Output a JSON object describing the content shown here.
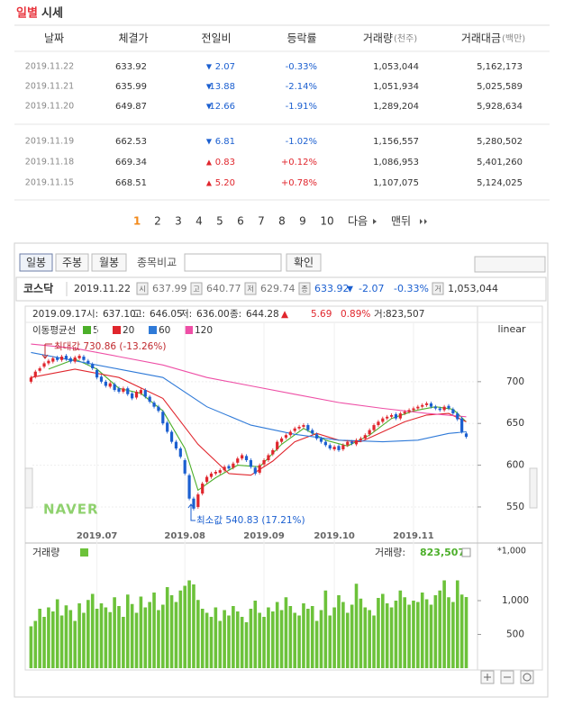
{
  "header": {
    "title_red": "일별",
    "title": "시세"
  },
  "table": {
    "columns": [
      {
        "label": "날짜"
      },
      {
        "label": "체결가"
      },
      {
        "label": "전일비"
      },
      {
        "label": "등락률"
      },
      {
        "label": "거래량",
        "unit": "(천주)"
      },
      {
        "label": "거래대금",
        "unit": "(백만)"
      }
    ],
    "rows": [
      [
        "2019.11.22",
        "633.92",
        "▼",
        "2.07",
        "-0.33%",
        "1,053,044",
        "5,162,173"
      ],
      [
        "2019.11.21",
        "635.99",
        "▼",
        "13.88",
        "-2.14%",
        "1,051,934",
        "5,025,589"
      ],
      [
        "2019.11.20",
        "649.87",
        "▼",
        "12.66",
        "-1.91%",
        "1,289,204",
        "5,928,634"
      ],
      [
        "2019.11.19",
        "662.53",
        "▼",
        "6.81",
        "-1.02%",
        "1,156,557",
        "5,280,502"
      ],
      [
        "2019.11.18",
        "669.34",
        "▲",
        "0.83",
        "+0.12%",
        "1,086,953",
        "5,401,260"
      ],
      [
        "2019.11.15",
        "668.51",
        "▲",
        "5.20",
        "+0.78%",
        "1,107,075",
        "5,124,025"
      ]
    ]
  },
  "pagination": {
    "pages": [
      "1",
      "2",
      "3",
      "4",
      "5",
      "6",
      "7",
      "8",
      "9",
      "10"
    ],
    "next": "다음",
    "last": "맨뒤"
  },
  "toolbar": {
    "buttons": [
      "일봉",
      "주봉",
      "월봉"
    ],
    "compare_label": "종목비교",
    "confirm": "확인"
  },
  "info": {
    "market": "코스닥",
    "date": "2019.11.22",
    "fields": [
      {
        "icon": "시",
        "value": "637.99"
      },
      {
        "icon": "고",
        "value": "640.77"
      },
      {
        "icon": "저",
        "value": "629.74"
      },
      {
        "icon": "종",
        "value": "633.92"
      }
    ],
    "change_arrow": "▼",
    "change": "-2.07",
    "change_rate": "-0.33%",
    "volume_icon": "거",
    "volume": "1,053,044"
  },
  "chart_data": {
    "type": "candlestick",
    "header": [
      "2019.09.17",
      "시:",
      "637.10",
      "고:",
      "646.05",
      "저:",
      "636.00",
      "종:",
      "644.28",
      "▲",
      "5.69",
      "0.89%",
      "거:",
      "823,507"
    ],
    "legend_title": "이동평균선",
    "scale": "linear",
    "max_label": "최대값 730.86 (-13.26%)",
    "min_label": "최소값 540.83 (17.21%)",
    "watermark": "NAVER",
    "categories": [
      null,
      null,
      null,
      null,
      null,
      null,
      null,
      null,
      null,
      null,
      null,
      null,
      null,
      null,
      null,
      "2019.07",
      null,
      null,
      null,
      null,
      null,
      null,
      null,
      null,
      null,
      null,
      null,
      null,
      null,
      null,
      null,
      null,
      null,
      null,
      null,
      "2019.08",
      null,
      null,
      null,
      null,
      null,
      null,
      null,
      null,
      null,
      null,
      null,
      null,
      null,
      null,
      null,
      null,
      null,
      "2019.09",
      null,
      null,
      null,
      null,
      null,
      null,
      null,
      null,
      null,
      null,
      null,
      null,
      null,
      null,
      null,
      "2019.10",
      null,
      null,
      null,
      null,
      null,
      null,
      null,
      null,
      null,
      null,
      null,
      null,
      null,
      null,
      null,
      null,
      null,
      "2019.11",
      null,
      null,
      null,
      null,
      null,
      null,
      null,
      null,
      null,
      null,
      null,
      null
    ],
    "open": [
      700,
      706,
      713,
      718,
      722,
      724,
      729,
      726,
      731,
      728,
      724,
      728,
      730,
      725,
      721,
      714,
      706,
      700,
      694,
      697,
      692,
      688,
      692,
      686,
      681,
      686,
      690,
      682,
      675,
      670,
      664,
      651,
      640,
      628,
      620,
      606,
      588,
      560,
      550,
      566,
      580,
      586,
      590,
      591,
      594,
      599,
      597,
      603,
      608,
      611,
      606,
      597,
      591,
      601,
      606,
      613,
      619,
      628,
      633,
      636,
      641,
      644,
      646,
      648,
      642,
      637,
      632,
      628,
      624,
      619,
      623,
      619,
      624,
      628,
      625,
      630,
      632,
      637,
      642,
      648,
      652,
      656,
      658,
      661,
      656,
      662,
      664,
      666,
      668,
      670,
      672,
      674,
      670,
      668,
      666,
      671,
      667,
      662,
      656,
      637.99
    ],
    "close": [
      705,
      712,
      716,
      722,
      725,
      728,
      726,
      730,
      727,
      724,
      729,
      731,
      726,
      722,
      716,
      705,
      700,
      695,
      698,
      690,
      688,
      692,
      685,
      680,
      688,
      690,
      682,
      676,
      670,
      665,
      650,
      640,
      628,
      620,
      610,
      590,
      560,
      548,
      565,
      578,
      586,
      590,
      592,
      594,
      598,
      596,
      602,
      608,
      612,
      606,
      598,
      590,
      600,
      606,
      612,
      618,
      628,
      632,
      636,
      640,
      644,
      646,
      648,
      642,
      638,
      632,
      628,
      624,
      620,
      622,
      618,
      624,
      628,
      626,
      630,
      632,
      636,
      642,
      648,
      652,
      656,
      658,
      660,
      656,
      662,
      664,
      666,
      668,
      670,
      672,
      674,
      670,
      668,
      666,
      670,
      668,
      662,
      655,
      640,
      633.92
    ],
    "up_color": "#e0262d",
    "down_color": "#1b5fd0",
    "ylim": [
      523,
      771
    ],
    "yticks": [
      550,
      600,
      650,
      700
    ],
    "series": [
      {
        "name": "5",
        "color": "#4caf2a",
        "x": [
          4,
          10,
          15,
          20,
          25,
          30,
          35,
          38,
          42,
          47,
          52,
          57,
          62,
          67,
          72,
          77,
          82,
          87,
          92,
          96,
          99
        ],
        "values": [
          715,
          727,
          715,
          692,
          686,
          665,
          620,
          570,
          585,
          600,
          598,
          625,
          644,
          630,
          623,
          636,
          656,
          665,
          670,
          667,
          652
        ]
      },
      {
        "name": "20",
        "color": "#e0262d",
        "x": [
          0,
          10,
          20,
          30,
          38,
          45,
          50,
          55,
          60,
          65,
          70,
          75,
          80,
          85,
          90,
          95,
          99
        ],
        "values": [
          705,
          715,
          705,
          680,
          625,
          590,
          588,
          605,
          628,
          638,
          630,
          628,
          640,
          652,
          660,
          662,
          652
        ]
      },
      {
        "name": "60",
        "color": "#2f7ad8",
        "x": [
          0,
          20,
          30,
          40,
          50,
          60,
          70,
          80,
          88,
          95,
          99
        ],
        "values": [
          735,
          715,
          705,
          670,
          648,
          637,
          630,
          628,
          630,
          638,
          640
        ]
      },
      {
        "name": "120",
        "color": "#ee4fa6",
        "x": [
          0,
          10,
          20,
          30,
          40,
          50,
          60,
          70,
          80,
          90,
          99
        ],
        "values": [
          745,
          740,
          730,
          720,
          705,
          695,
          685,
          675,
          668,
          662,
          658
        ]
      }
    ],
    "volume": {
      "label": "거래량",
      "value_label": "거래량:",
      "value": "823,507",
      "unit": "*1,000",
      "color": "#6cc23a",
      "values": [
        620,
        700,
        880,
        760,
        900,
        840,
        1020,
        780,
        930,
        860,
        700,
        960,
        820,
        1010,
        1100,
        880,
        960,
        900,
        830,
        1050,
        920,
        760,
        1090,
        950,
        820,
        1060,
        900,
        980,
        1120,
        860,
        940,
        1200,
        1080,
        980,
        1150,
        1220,
        1300,
        1240,
        1010,
        880,
        820,
        760,
        900,
        700,
        860,
        780,
        920,
        840,
        760,
        680,
        880,
        1000,
        820,
        760,
        900,
        840,
        980,
        860,
        1050,
        920,
        820,
        780,
        960,
        880,
        920,
        700,
        860,
        1150,
        780,
        900,
        1080,
        980,
        820,
        940,
        1250,
        1030,
        900,
        860,
        780,
        1040,
        1100,
        960,
        900,
        1000,
        1150,
        1050,
        940,
        1000,
        980,
        1120,
        1020,
        940,
        1080,
        1150,
        1300,
        1050,
        980,
        1300,
        1090,
        1053.044
      ],
      "ylim": [
        0,
        1600
      ],
      "yticks": [
        500,
        {
          "value": 1000,
          "label": "1,000"
        }
      ]
    }
  }
}
